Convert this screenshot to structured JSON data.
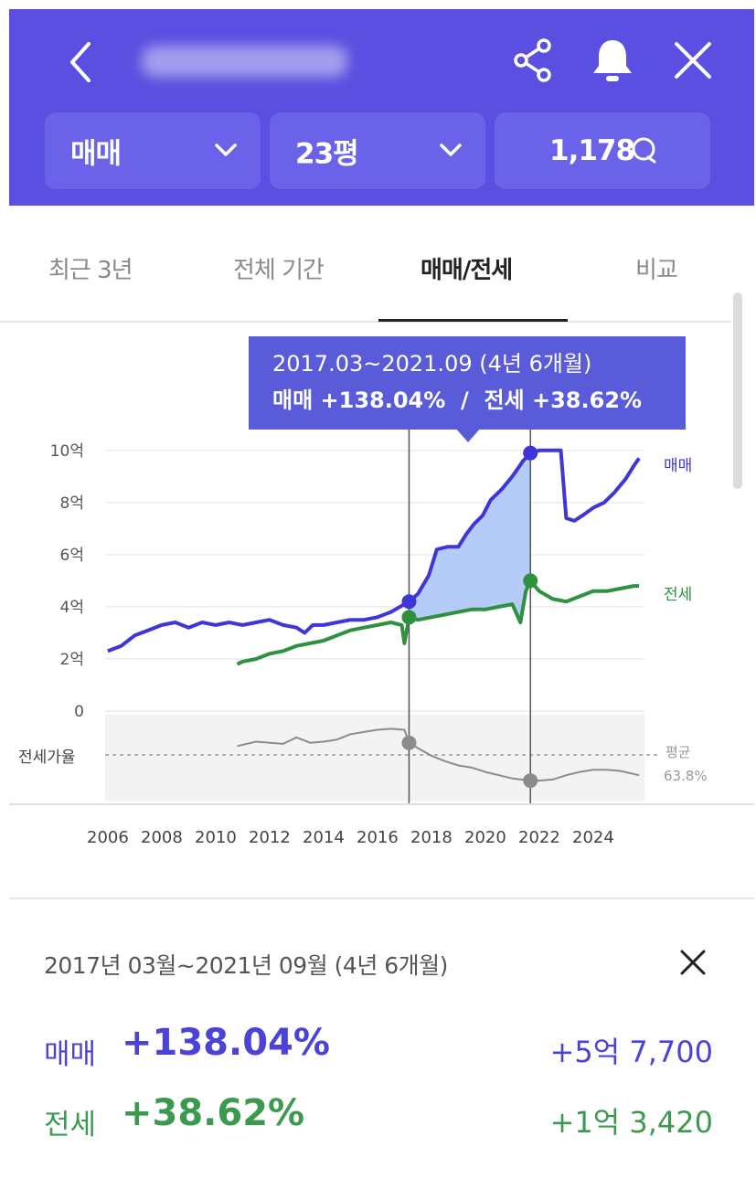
{
  "header": {
    "filters": [
      {
        "label": "매매"
      },
      {
        "label": "23평"
      },
      {
        "label": "1,178"
      }
    ]
  },
  "tabs": [
    {
      "label": "최근 3년"
    },
    {
      "label": "전체 기간"
    },
    {
      "label": "매매/전세",
      "active": true
    },
    {
      "label": "비교"
    }
  ],
  "tooltip": {
    "period": "2017.03~2021.09 (4년 6개월)",
    "change": "매매 +138.04%  /  전세 +38.62%"
  },
  "chart_data": {
    "type": "line",
    "x_ticks": [
      "2006",
      "2008",
      "2010",
      "2012",
      "2014",
      "2016",
      "2018",
      "2020",
      "2022",
      "2024"
    ],
    "y_ticks": [
      "10억",
      "8억",
      "6억",
      "4억",
      "2억",
      "0"
    ],
    "ylim": [
      0,
      10.8
    ],
    "xlim": [
      2005.9,
      2025.9
    ],
    "selection": {
      "start": 2017.17,
      "end": 2021.67
    },
    "colors": {
      "sale": "#3e36d6",
      "jeonse": "#2f9140",
      "ratio": "#8c8c8c",
      "fill": "#a9c3f7"
    },
    "series": [
      {
        "name": "매매",
        "points": [
          [
            2006.0,
            2.3
          ],
          [
            2006.5,
            2.5
          ],
          [
            2007.0,
            2.9
          ],
          [
            2007.5,
            3.1
          ],
          [
            2008.0,
            3.3
          ],
          [
            2008.5,
            3.4
          ],
          [
            2009.0,
            3.2
          ],
          [
            2009.5,
            3.4
          ],
          [
            2010.0,
            3.3
          ],
          [
            2010.5,
            3.4
          ],
          [
            2011.0,
            3.3
          ],
          [
            2011.5,
            3.4
          ],
          [
            2012.0,
            3.5
          ],
          [
            2012.5,
            3.3
          ],
          [
            2013.0,
            3.2
          ],
          [
            2013.3,
            3.0
          ],
          [
            2013.6,
            3.3
          ],
          [
            2014.0,
            3.3
          ],
          [
            2014.5,
            3.4
          ],
          [
            2015.0,
            3.5
          ],
          [
            2015.5,
            3.5
          ],
          [
            2016.0,
            3.6
          ],
          [
            2016.5,
            3.8
          ],
          [
            2017.0,
            4.1
          ],
          [
            2017.17,
            4.2
          ],
          [
            2017.5,
            4.5
          ],
          [
            2017.9,
            5.2
          ],
          [
            2018.2,
            6.2
          ],
          [
            2018.6,
            6.3
          ],
          [
            2019.0,
            6.3
          ],
          [
            2019.3,
            6.8
          ],
          [
            2019.6,
            7.2
          ],
          [
            2019.9,
            7.5
          ],
          [
            2020.2,
            8.1
          ],
          [
            2020.6,
            8.5
          ],
          [
            2021.0,
            9.0
          ],
          [
            2021.4,
            9.6
          ],
          [
            2021.67,
            9.9
          ],
          [
            2022.0,
            10.0
          ],
          [
            2022.4,
            10.0
          ],
          [
            2022.8,
            10.0
          ],
          [
            2023.0,
            7.4
          ],
          [
            2023.3,
            7.3
          ],
          [
            2023.6,
            7.5
          ],
          [
            2024.0,
            7.8
          ],
          [
            2024.4,
            8.0
          ],
          [
            2024.8,
            8.4
          ],
          [
            2025.2,
            8.9
          ],
          [
            2025.5,
            9.4
          ],
          [
            2025.7,
            9.7
          ]
        ]
      },
      {
        "name": "전세",
        "points": [
          [
            2010.8,
            1.8
          ],
          [
            2011.0,
            1.9
          ],
          [
            2011.5,
            2.0
          ],
          [
            2012.0,
            2.2
          ],
          [
            2012.5,
            2.3
          ],
          [
            2013.0,
            2.5
          ],
          [
            2013.5,
            2.6
          ],
          [
            2014.0,
            2.7
          ],
          [
            2014.5,
            2.9
          ],
          [
            2015.0,
            3.1
          ],
          [
            2015.5,
            3.2
          ],
          [
            2016.0,
            3.3
          ],
          [
            2016.5,
            3.4
          ],
          [
            2016.9,
            3.3
          ],
          [
            2017.0,
            2.6
          ],
          [
            2017.17,
            3.6
          ],
          [
            2017.5,
            3.5
          ],
          [
            2018.0,
            3.6
          ],
          [
            2018.5,
            3.7
          ],
          [
            2019.0,
            3.8
          ],
          [
            2019.5,
            3.9
          ],
          [
            2020.0,
            3.9
          ],
          [
            2020.5,
            4.0
          ],
          [
            2021.0,
            4.1
          ],
          [
            2021.3,
            3.4
          ],
          [
            2021.5,
            4.6
          ],
          [
            2021.67,
            5.0
          ],
          [
            2022.0,
            4.6
          ],
          [
            2022.5,
            4.3
          ],
          [
            2023.0,
            4.2
          ],
          [
            2023.5,
            4.4
          ],
          [
            2024.0,
            4.6
          ],
          [
            2024.5,
            4.6
          ],
          [
            2025.0,
            4.7
          ],
          [
            2025.5,
            4.8
          ],
          [
            2025.7,
            4.8
          ]
        ]
      },
      {
        "name": "전세가율",
        "points": [
          [
            2010.8,
            0.82
          ],
          [
            2011.5,
            0.86
          ],
          [
            2012.5,
            0.84
          ],
          [
            2013.0,
            0.9
          ],
          [
            2013.5,
            0.85
          ],
          [
            2014.0,
            0.86
          ],
          [
            2014.5,
            0.88
          ],
          [
            2015.0,
            0.93
          ],
          [
            2015.5,
            0.95
          ],
          [
            2016.0,
            0.97
          ],
          [
            2016.5,
            0.98
          ],
          [
            2017.0,
            0.97
          ],
          [
            2017.17,
            0.85
          ],
          [
            2017.5,
            0.8
          ],
          [
            2018.0,
            0.73
          ],
          [
            2018.5,
            0.68
          ],
          [
            2019.0,
            0.64
          ],
          [
            2019.5,
            0.62
          ],
          [
            2020.0,
            0.58
          ],
          [
            2020.5,
            0.55
          ],
          [
            2021.0,
            0.52
          ],
          [
            2021.67,
            0.5
          ],
          [
            2022.0,
            0.5
          ],
          [
            2022.5,
            0.51
          ],
          [
            2023.0,
            0.55
          ],
          [
            2023.5,
            0.58
          ],
          [
            2024.0,
            0.6
          ],
          [
            2024.5,
            0.6
          ],
          [
            2025.0,
            0.59
          ],
          [
            2025.7,
            0.55
          ]
        ]
      }
    ],
    "series_labels": {
      "sale": "매매",
      "jeonse": "전세"
    },
    "ratio_label": "전세가율",
    "avg_label": "평균",
    "avg_value": "63.8%"
  },
  "summary": {
    "period": "2017년 03월~2021년 09월 (4년 6개월)",
    "rows": [
      {
        "name": "매매",
        "pct": "+138.04%",
        "amount": "+5억 7,700"
      },
      {
        "name": "전세",
        "pct": "+38.62%",
        "amount": "+1억 3,420"
      }
    ]
  }
}
